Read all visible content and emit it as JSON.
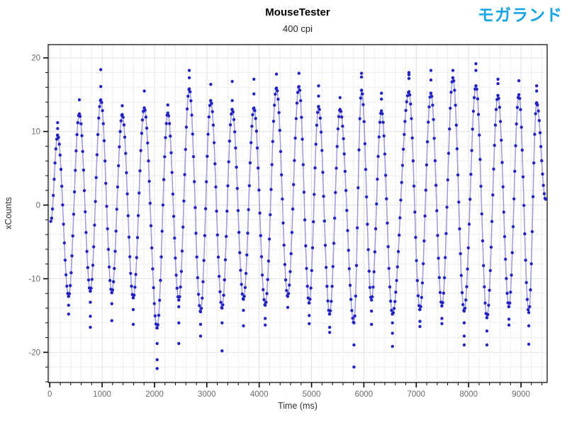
{
  "header": {
    "title": "MouseTester",
    "subtitle": "400 cpi",
    "brand": "モガランド",
    "brand_color": "#14a3e6"
  },
  "chart_data": {
    "type": "scatter",
    "title": "MouseTester",
    "subtitle": "400 cpi",
    "xlabel": "Time (ms)",
    "ylabel": "xCounts",
    "xlim": [
      -30,
      9500
    ],
    "ylim": [
      -24.1,
      21.8
    ],
    "x_major_ticks": [
      0,
      1000,
      2000,
      3000,
      4000,
      5000,
      6000,
      7000,
      8000,
      9000
    ],
    "x_minor_step": 200,
    "y_major_ticks": [
      -20,
      -10,
      0,
      10,
      20
    ],
    "y_minor_step": 2,
    "grid": true,
    "legend": "none",
    "point_color": "#2323c4",
    "line_color": "#9a9ade",
    "sample_interval_ms": 16,
    "series_name": "xCounts",
    "start": {
      "t": 20,
      "v": -2.2
    },
    "end": {
      "t": 9470,
      "v": 0.8
    },
    "cycles": [
      {
        "peak_t": 150,
        "peak_v": 9.5,
        "peak_extra": [
          10.4,
          11.2
        ],
        "trough_t": 360,
        "trough_v": -12.4,
        "trough_extra": [
          -13.6,
          -14.8
        ]
      },
      {
        "peak_t": 565,
        "peak_v": 12.4,
        "peak_extra": [
          14.3
        ],
        "trough_t": 775,
        "trough_v": -11.7,
        "trough_extra": [
          -13.2,
          -15.1,
          -16.6
        ]
      },
      {
        "peak_t": 975,
        "peak_v": 14.3,
        "peak_extra": [
          16.1,
          18.4
        ],
        "trough_t": 1185,
        "trough_v": -11.9,
        "trough_extra": [
          -13.4,
          -15.7
        ]
      },
      {
        "peak_t": 1385,
        "peak_v": 12.3,
        "peak_extra": [
          13.5
        ],
        "trough_t": 1595,
        "trough_v": -12.6,
        "trough_extra": [
          -14.2,
          -16.2
        ]
      },
      {
        "peak_t": 1805,
        "peak_v": 13.2,
        "peak_extra": [
          15.5
        ],
        "trough_t": 2050,
        "trough_v": -16.7,
        "trough_extra": [
          -18.8,
          -21.0,
          -22.2
        ]
      },
      {
        "peak_t": 2255,
        "peak_v": 12.5,
        "peak_extra": [
          13.6
        ],
        "trough_t": 2465,
        "trough_v": -12.9,
        "trough_extra": [
          -13.8,
          -16.0,
          -18.8
        ]
      },
      {
        "peak_t": 2665,
        "peak_v": 15.8,
        "peak_extra": [
          17.3,
          18.3
        ],
        "trough_t": 2880,
        "trough_v": -14.5,
        "trough_extra": [
          -16.2,
          -17.8
        ]
      },
      {
        "peak_t": 3075,
        "peak_v": 14.2,
        "peak_extra": [
          16.4
        ],
        "trough_t": 3290,
        "trough_v": -14.0,
        "trough_extra": [
          -16.0,
          -19.8
        ]
      },
      {
        "peak_t": 3485,
        "peak_v": 13.0,
        "peak_extra": [
          14.2,
          16.8
        ],
        "trough_t": 3700,
        "trough_v": -12.8,
        "trough_extra": [
          -14.3,
          -16.4
        ]
      },
      {
        "peak_t": 3900,
        "peak_v": 13.2,
        "peak_extra": [
          15.1,
          17.1
        ],
        "trough_t": 4115,
        "trough_v": -13.6,
        "trough_extra": [
          -15.4,
          -16.3
        ]
      },
      {
        "peak_t": 4330,
        "peak_v": 15.9,
        "peak_extra": [
          17.8
        ],
        "trough_t": 4545,
        "trough_v": -12.4,
        "trough_extra": [
          -13.9
        ]
      },
      {
        "peak_t": 4760,
        "peak_v": 16.1,
        "peak_extra": [
          17.9
        ],
        "trough_t": 4955,
        "trough_v": -13.3,
        "trough_extra": [
          -15.0,
          -16.1
        ]
      },
      {
        "peak_t": 5135,
        "peak_v": 13.4,
        "peak_extra": [
          14.8,
          16.2
        ],
        "trough_t": 5345,
        "trough_v": -14.8,
        "trough_extra": [
          -16.6,
          -17.3
        ]
      },
      {
        "peak_t": 5545,
        "peak_v": 13.0,
        "peak_extra": [
          14.6
        ],
        "trough_t": 5810,
        "trough_v": -16.0,
        "trough_extra": [
          -19.0,
          -22.0
        ]
      },
      {
        "peak_t": 5955,
        "peak_v": 15.6,
        "peak_extra": [
          17.4,
          17.9
        ],
        "trough_t": 6145,
        "trough_v": -12.9,
        "trough_extra": [
          -14.4,
          -16.2
        ]
      },
      {
        "peak_t": 6335,
        "peak_v": 12.8,
        "peak_extra": [
          14.4,
          15.2
        ],
        "trough_t": 6545,
        "trough_v": -14.8,
        "trough_extra": [
          -16.0,
          -17.4,
          -19.2
        ]
      },
      {
        "peak_t": 6860,
        "peak_v": 15.4,
        "peak_extra": [
          17.2,
          17.7,
          18.0
        ],
        "trough_t": 7070,
        "trough_v": -14.2,
        "trough_extra": [
          -15.8,
          -16.5
        ]
      },
      {
        "peak_t": 7280,
        "peak_v": 15.2,
        "peak_extra": [
          17.0,
          18.3
        ],
        "trough_t": 7490,
        "trough_v": -13.7,
        "trough_extra": [
          -15.4,
          -16.1
        ]
      },
      {
        "peak_t": 7700,
        "peak_v": 17.3,
        "peak_extra": [
          18.3
        ],
        "trough_t": 7915,
        "trough_v": -14.4,
        "trough_extra": [
          -16.0,
          -17.8,
          -19.0
        ]
      },
      {
        "peak_t": 8140,
        "peak_v": 16.2,
        "peak_extra": [
          18.3,
          19.2
        ],
        "trough_t": 8350,
        "trough_v": -15.3,
        "trough_extra": [
          -17.1,
          -19.0
        ]
      },
      {
        "peak_t": 8560,
        "peak_v": 14.9,
        "peak_extra": [
          16.5,
          17.1
        ],
        "trough_t": 8770,
        "trough_v": -13.8,
        "trough_extra": [
          -15.5,
          -16.3
        ]
      },
      {
        "peak_t": 8960,
        "peak_v": 15.0,
        "peak_extra": [
          16.9
        ],
        "trough_t": 9150,
        "trough_v": -14.6,
        "trough_extra": [
          -16.4,
          -18.9
        ]
      },
      {
        "peak_t": 9300,
        "peak_v": 13.9,
        "peak_extra": [
          15.5,
          16.2
        ],
        "trough_t": null,
        "trough_v": null,
        "trough_extra": []
      }
    ]
  }
}
